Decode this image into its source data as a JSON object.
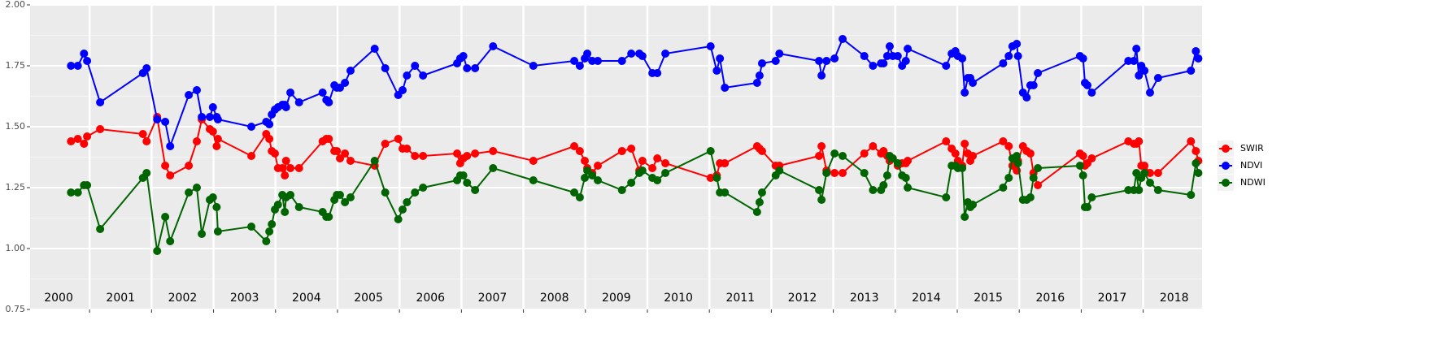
{
  "chart_data": {
    "type": "line",
    "x": [
      2000.7,
      2000.81,
      2000.91,
      2000.96,
      2001.17,
      2001.86,
      2001.92,
      2002.09,
      2002.22,
      2002.3,
      2002.6,
      2002.73,
      2002.81,
      2002.94,
      2002.99,
      2003.05,
      2003.07,
      2003.61,
      2003.85,
      2003.9,
      2003.94,
      2003.99,
      2004.04,
      2004.11,
      2004.15,
      2004.17,
      2004.24,
      2004.38,
      2004.76,
      2004.82,
      2004.86,
      2004.95,
      2004.99,
      2005.04,
      2005.12,
      2005.21,
      2005.6,
      2005.77,
      2005.98,
      2006.05,
      2006.12,
      2006.25,
      2006.38,
      2006.93,
      2006.98,
      2007.03,
      2007.09,
      2007.22,
      2007.51,
      2008.16,
      2008.82,
      2008.91,
      2008.99,
      2009.03,
      2009.11,
      2009.2,
      2009.59,
      2009.74,
      2009.87,
      2009.92,
      2010.08,
      2010.16,
      2010.29,
      2011.02,
      2011.12,
      2011.17,
      2011.25,
      2011.77,
      2011.81,
      2011.85,
      2012.07,
      2012.13,
      2012.77,
      2012.81,
      2012.89,
      2013.02,
      2013.15,
      2013.5,
      2013.64,
      2013.77,
      2013.81,
      2013.87,
      2013.91,
      2013.96,
      2014.04,
      2014.11,
      2014.17,
      2014.2,
      2014.82,
      2014.91,
      2014.97,
      2015.01,
      2015.08,
      2015.12,
      2015.17,
      2015.21,
      2015.25,
      2015.74,
      2015.83,
      2015.89,
      2015.96,
      2015.98,
      2016.06,
      2016.12,
      2016.18,
      2016.23,
      2016.3,
      2016.98,
      2017.03,
      2017.06,
      2017.1,
      2017.17,
      2017.76,
      2017.85,
      2017.89,
      2017.93,
      2017.97,
      2018.02,
      2018.11,
      2018.24,
      2018.77,
      2018.85,
      2018.89
    ],
    "series": [
      {
        "name": "SWIR",
        "color": "#ff0000",
        "values": [
          1.44,
          1.45,
          1.43,
          1.46,
          1.49,
          1.47,
          1.44,
          1.54,
          1.34,
          1.3,
          1.34,
          1.44,
          1.53,
          1.49,
          1.48,
          1.42,
          1.45,
          1.38,
          1.47,
          1.45,
          1.4,
          1.39,
          1.33,
          1.33,
          1.3,
          1.36,
          1.33,
          1.33,
          1.44,
          1.45,
          1.45,
          1.4,
          1.4,
          1.37,
          1.39,
          1.36,
          1.34,
          1.43,
          1.45,
          1.41,
          1.41,
          1.38,
          1.38,
          1.39,
          1.35,
          1.37,
          1.38,
          1.39,
          1.4,
          1.36,
          1.42,
          1.4,
          1.36,
          1.33,
          1.31,
          1.34,
          1.4,
          1.41,
          1.32,
          1.36,
          1.33,
          1.37,
          1.35,
          1.29,
          1.3,
          1.35,
          1.35,
          1.42,
          1.41,
          1.4,
          1.34,
          1.34,
          1.38,
          1.42,
          1.32,
          1.31,
          1.31,
          1.39,
          1.42,
          1.39,
          1.4,
          1.38,
          1.36,
          1.37,
          1.34,
          1.35,
          1.35,
          1.36,
          1.44,
          1.41,
          1.39,
          1.36,
          1.34,
          1.43,
          1.39,
          1.36,
          1.38,
          1.44,
          1.42,
          1.34,
          1.32,
          1.36,
          1.42,
          1.4,
          1.39,
          1.31,
          1.26,
          1.39,
          1.38,
          1.34,
          1.35,
          1.37,
          1.44,
          1.43,
          1.43,
          1.44,
          1.34,
          1.34,
          1.31,
          1.31,
          1.44,
          1.4,
          1.36
        ]
      },
      {
        "name": "NDVI",
        "color": "#0000ff",
        "values": [
          1.75,
          1.75,
          1.8,
          1.77,
          1.6,
          1.72,
          1.74,
          1.53,
          1.52,
          1.42,
          1.63,
          1.65,
          1.54,
          1.54,
          1.58,
          1.54,
          1.53,
          1.5,
          1.52,
          1.51,
          1.55,
          1.57,
          1.58,
          1.59,
          1.59,
          1.58,
          1.64,
          1.6,
          1.64,
          1.61,
          1.6,
          1.67,
          1.66,
          1.66,
          1.68,
          1.73,
          1.82,
          1.74,
          1.63,
          1.65,
          1.71,
          1.75,
          1.71,
          1.76,
          1.78,
          1.79,
          1.74,
          1.74,
          1.83,
          1.75,
          1.77,
          1.75,
          1.78,
          1.8,
          1.77,
          1.77,
          1.77,
          1.8,
          1.8,
          1.79,
          1.72,
          1.72,
          1.8,
          1.83,
          1.73,
          1.78,
          1.66,
          1.68,
          1.71,
          1.76,
          1.77,
          1.8,
          1.77,
          1.71,
          1.77,
          1.78,
          1.86,
          1.79,
          1.75,
          1.76,
          1.76,
          1.79,
          1.83,
          1.79,
          1.79,
          1.75,
          1.77,
          1.82,
          1.75,
          1.8,
          1.81,
          1.79,
          1.78,
          1.64,
          1.7,
          1.7,
          1.68,
          1.76,
          1.79,
          1.83,
          1.84,
          1.79,
          1.64,
          1.62,
          1.67,
          1.67,
          1.72,
          1.79,
          1.78,
          1.68,
          1.67,
          1.64,
          1.77,
          1.77,
          1.82,
          1.71,
          1.75,
          1.73,
          1.64,
          1.7,
          1.73,
          1.81,
          1.78
        ]
      },
      {
        "name": "NDWI",
        "color": "#006400",
        "values": [
          1.23,
          1.23,
          1.26,
          1.26,
          1.08,
          1.29,
          1.31,
          0.99,
          1.13,
          1.03,
          1.23,
          1.25,
          1.06,
          1.2,
          1.21,
          1.17,
          1.07,
          1.09,
          1.03,
          1.07,
          1.1,
          1.16,
          1.18,
          1.22,
          1.15,
          1.21,
          1.22,
          1.17,
          1.15,
          1.13,
          1.13,
          1.2,
          1.22,
          1.22,
          1.19,
          1.21,
          1.36,
          1.23,
          1.12,
          1.16,
          1.19,
          1.23,
          1.25,
          1.28,
          1.3,
          1.3,
          1.27,
          1.24,
          1.33,
          1.28,
          1.23,
          1.21,
          1.29,
          1.32,
          1.3,
          1.28,
          1.24,
          1.27,
          1.31,
          1.32,
          1.29,
          1.28,
          1.31,
          1.4,
          1.29,
          1.23,
          1.23,
          1.15,
          1.19,
          1.23,
          1.3,
          1.32,
          1.24,
          1.2,
          1.31,
          1.39,
          1.38,
          1.31,
          1.24,
          1.24,
          1.26,
          1.3,
          1.38,
          1.37,
          1.35,
          1.3,
          1.29,
          1.25,
          1.21,
          1.34,
          1.34,
          1.33,
          1.33,
          1.13,
          1.19,
          1.17,
          1.18,
          1.25,
          1.29,
          1.37,
          1.38,
          1.35,
          1.2,
          1.2,
          1.21,
          1.29,
          1.33,
          1.34,
          1.3,
          1.17,
          1.17,
          1.21,
          1.24,
          1.24,
          1.31,
          1.24,
          1.29,
          1.31,
          1.27,
          1.24,
          1.22,
          1.35,
          1.31
        ]
      }
    ],
    "xlim": [
      2000.04,
      2018.95
    ],
    "xticks": [
      2001,
      2002,
      2003,
      2004,
      2005,
      2006,
      2007,
      2008,
      2009,
      2010,
      2011,
      2012,
      2013,
      2014,
      2015,
      2016,
      2017,
      2018
    ],
    "ylim": [
      0.75,
      2.0
    ],
    "yticks": [
      {
        "value": 0.75,
        "label": "0.75"
      },
      {
        "value": 1.0,
        "label": "1.00"
      },
      {
        "value": 1.25,
        "label": "1.25"
      },
      {
        "value": 1.5,
        "label": "1.50"
      },
      {
        "value": 1.75,
        "label": "1.75"
      },
      {
        "value": 2.0,
        "label": "2.00"
      }
    ],
    "annotations": [
      {
        "text": "2000",
        "x": 2000.5
      },
      {
        "text": "2001",
        "x": 2001.5
      },
      {
        "text": "2002",
        "x": 2002.5
      },
      {
        "text": "2003",
        "x": 2003.5
      },
      {
        "text": "2004",
        "x": 2004.5
      },
      {
        "text": "2005",
        "x": 2005.5
      },
      {
        "text": "2006",
        "x": 2006.5
      },
      {
        "text": "2007",
        "x": 2007.5
      },
      {
        "text": "2008",
        "x": 2008.5
      },
      {
        "text": "2009",
        "x": 2009.5
      },
      {
        "text": "2010",
        "x": 2010.5
      },
      {
        "text": "2011",
        "x": 2011.5
      },
      {
        "text": "2012",
        "x": 2012.5
      },
      {
        "text": "2013",
        "x": 2013.5
      },
      {
        "text": "2014",
        "x": 2014.5
      },
      {
        "text": "2015",
        "x": 2015.5
      },
      {
        "text": "2016",
        "x": 2016.5
      },
      {
        "text": "2017",
        "x": 2017.5
      },
      {
        "text": "2018",
        "x": 2018.5
      }
    ],
    "grid": true,
    "legend": "right"
  }
}
